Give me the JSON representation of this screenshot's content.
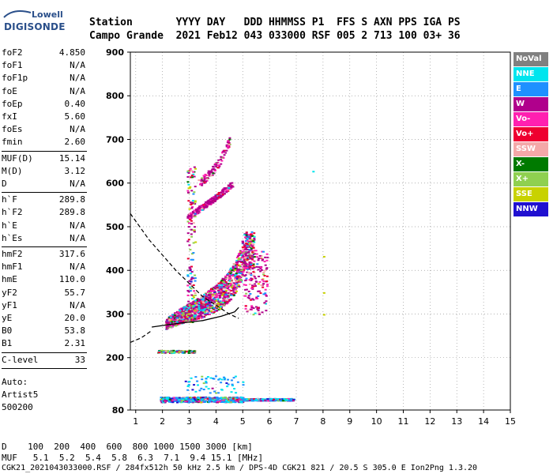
{
  "logo": {
    "line1": "Lowell",
    "line2": "DIGISONDE"
  },
  "header": {
    "row1": "Station       YYYY DAY   DDD HHMMSS P1  FFS S AXN PPS IGA PS",
    "row2": "Campo Grande  2021 Feb12 043 033000 RSF 005 2 713 100 03+ 36"
  },
  "params": {
    "group1": [
      {
        "name": "foF2",
        "value": "4.850"
      },
      {
        "name": "foF1",
        "value": "N/A"
      },
      {
        "name": "foF1p",
        "value": "N/A"
      },
      {
        "name": "foE",
        "value": "N/A"
      },
      {
        "name": "foEp",
        "value": "0.40"
      },
      {
        "name": "fxI",
        "value": "5.60"
      },
      {
        "name": "foEs",
        "value": "N/A"
      },
      {
        "name": "fmin",
        "value": "2.60"
      }
    ],
    "group2": [
      {
        "name": "MUF(D)",
        "value": "15.14"
      },
      {
        "name": "M(D)",
        "value": "3.12"
      },
      {
        "name": "D",
        "value": "N/A"
      }
    ],
    "group3": [
      {
        "name": "h`F",
        "value": "289.8"
      },
      {
        "name": "h`F2",
        "value": "289.8"
      },
      {
        "name": "h`E",
        "value": "N/A"
      },
      {
        "name": "h`Es",
        "value": "N/A"
      }
    ],
    "group4": [
      {
        "name": "hmF2",
        "value": "317.6"
      },
      {
        "name": "hmF1",
        "value": "N/A"
      },
      {
        "name": "hmE",
        "value": "110.0"
      },
      {
        "name": "yF2",
        "value": "55.7"
      },
      {
        "name": "yF1",
        "value": "N/A"
      },
      {
        "name": "yE",
        "value": "20.0"
      },
      {
        "name": "B0",
        "value": "53.8"
      },
      {
        "name": "B1",
        "value": "2.31"
      }
    ],
    "clevel": {
      "name": "C-level",
      "value": "33"
    },
    "auto": [
      "Auto:",
      "Artist5",
      "500200"
    ]
  },
  "legend": [
    {
      "label": "NoVal",
      "bg": "#808080",
      "fg": "#ffffff"
    },
    {
      "label": "NNE",
      "bg": "#00e5ee",
      "fg": "#ffffff"
    },
    {
      "label": "E",
      "bg": "#1e90ff",
      "fg": "#ffffff"
    },
    {
      "label": "W",
      "bg": "#b0008c",
      "fg": "#ffffff"
    },
    {
      "label": "Vo-",
      "bg": "#ff20b0",
      "fg": "#ffffff"
    },
    {
      "label": "Vo+",
      "bg": "#ee0030",
      "fg": "#ffffff"
    },
    {
      "label": "SSW",
      "bg": "#f4a8a8",
      "fg": "#ffffff"
    },
    {
      "label": "X-",
      "bg": "#007a00",
      "fg": "#ffffff"
    },
    {
      "label": "X+",
      "bg": "#8fd050",
      "fg": "#ffffff"
    },
    {
      "label": "SSE",
      "bg": "#c8d200",
      "fg": "#ffffff"
    },
    {
      "label": "NNW",
      "bg": "#2010d0",
      "fg": "#ffffff"
    }
  ],
  "footer": {
    "d_row": "D    100  200  400  600  800 1000 1500 3000 [km]",
    "muf_row": "MUF   5.1  5.2  5.4  5.8  6.3  7.1  9.4 15.1 [MHz]",
    "file_row": "CGK21_2021043033000.RSF / 284fx512h 50 kHz 2.5 km / DPS-4D CGK21 821 / 20.5 S 305.0 E Ion2Png 1.3.20"
  },
  "chart_data": {
    "type": "scatter",
    "xlabel": "",
    "ylabel": "",
    "xlim": [
      0.8,
      15
    ],
    "ylim": [
      80,
      900
    ],
    "xticks": [
      1,
      2,
      3,
      4,
      5,
      6,
      7,
      8,
      9,
      10,
      11,
      12,
      13,
      14,
      15
    ],
    "yticks": [
      80,
      200,
      300,
      400,
      500,
      600,
      700,
      800,
      900
    ],
    "grid": "dotted",
    "traces": {
      "F2_trace_center": [
        [
          2.1,
          275
        ],
        [
          2.6,
          290
        ],
        [
          3.0,
          300
        ],
        [
          3.5,
          312
        ],
        [
          4.0,
          330
        ],
        [
          4.4,
          350
        ],
        [
          4.7,
          375
        ],
        [
          4.9,
          400
        ],
        [
          5.0,
          430
        ]
      ],
      "second_hop": [
        [
          2.9,
          520
        ],
        [
          3.3,
          540
        ],
        [
          3.8,
          560
        ],
        [
          4.3,
          585
        ],
        [
          4.6,
          600
        ]
      ],
      "third_hop": [
        [
          3.3,
          600
        ],
        [
          3.7,
          620
        ],
        [
          4.1,
          650
        ],
        [
          4.5,
          700
        ]
      ],
      "low_trace_range_mhz": [
        1.9,
        6.9
      ],
      "low_trace_height_km": 105,
      "e_trace_range_mhz": [
        1.8,
        3.2
      ],
      "e_trace_height_km": 215,
      "spur_points": [
        [
          7.6,
          628
        ],
        [
          8.0,
          433
        ],
        [
          8.0,
          350
        ],
        [
          8.0,
          300
        ]
      ]
    },
    "profile_solid": [
      [
        1.6,
        270
      ],
      [
        2.5,
        278
      ],
      [
        3.5,
        285
      ],
      [
        4.2,
        295
      ],
      [
        4.7,
        305
      ],
      [
        4.85,
        315
      ]
    ],
    "profile_dashed_upper": [
      [
        0.8,
        530
      ],
      [
        1.5,
        470
      ],
      [
        2.5,
        400
      ],
      [
        3.5,
        340
      ],
      [
        4.5,
        300
      ],
      [
        4.85,
        290
      ]
    ],
    "profile_dashed_lower": [
      [
        0.8,
        235
      ],
      [
        1.2,
        245
      ],
      [
        1.6,
        262
      ]
    ]
  }
}
